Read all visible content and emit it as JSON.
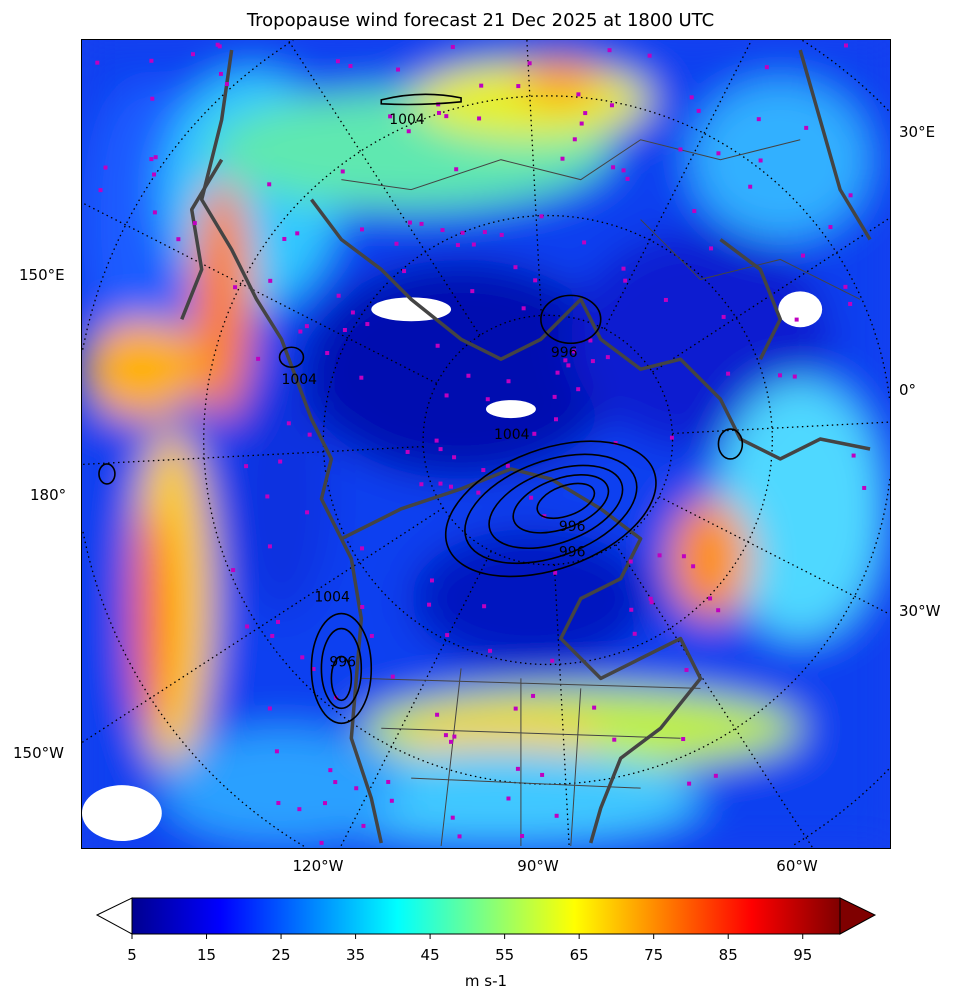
{
  "title": "Tropopause wind forecast 21 Dec 2025 at 1800 UTC",
  "map": {
    "projection": "north-polar-stereographic",
    "left_labels": [
      "150°E",
      "180°",
      "150°W"
    ],
    "right_labels": [
      "30°E",
      "0°",
      "30°W"
    ],
    "bottom_labels": [
      "120°W",
      "90°W",
      "60°W"
    ],
    "contour_labels": [
      "1004",
      "1004",
      "996",
      "1004",
      "996",
      "996",
      "996",
      "1004"
    ],
    "coastline_color": "#444444",
    "contour_color": "#000000",
    "station_marker_color": "#c000c0"
  },
  "colorbar": {
    "colormap": "jet",
    "min": 5,
    "max": 100,
    "extend": "both",
    "under_color": "#ffffff",
    "over_color": "#7f0000",
    "ticks": [
      "5",
      "15",
      "25",
      "35",
      "45",
      "55",
      "65",
      "75",
      "85",
      "95"
    ],
    "label": "m s-1"
  }
}
